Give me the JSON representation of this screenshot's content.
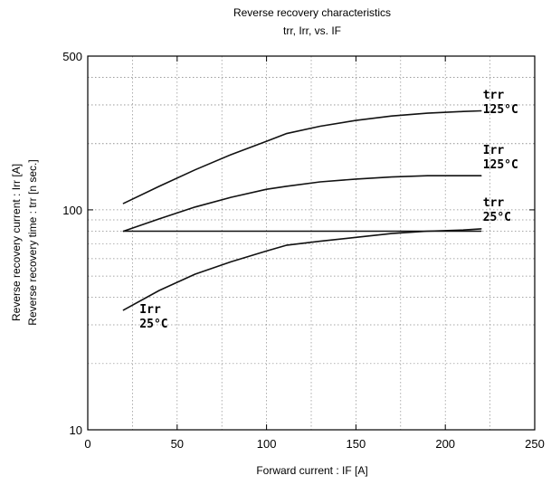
{
  "chart_data": {
    "type": "line",
    "title": "Reverse recovery characteristics",
    "subtitle": "trr, Irr, vs. IF",
    "xlabel": "Forward current : IF [A]",
    "ylabel_lines": [
      "Reverse recovery current : Irr [A]",
      "Reverse recovery time : trr [n sec.]"
    ],
    "xlim": [
      0,
      250
    ],
    "ylim": [
      10,
      500
    ],
    "yscale": "log",
    "x_ticks": [
      0,
      50,
      100,
      150,
      200,
      250
    ],
    "x_tick_labels": [
      "0",
      "50",
      "100",
      "150",
      "200",
      "250"
    ],
    "y_ticks": [
      10,
      100,
      500
    ],
    "y_tick_labels": [
      "10",
      "100",
      "500"
    ],
    "grid": true,
    "series": [
      {
        "name": "trr 125°C",
        "x": [
          20,
          40,
          60,
          80,
          100,
          111,
          130,
          150,
          170,
          190,
          210,
          220
        ],
        "y": [
          107,
          128,
          152,
          178,
          205,
          222,
          240,
          255,
          267,
          275,
          280,
          282
        ]
      },
      {
        "name": "Irr 125°C",
        "x": [
          20,
          40,
          60,
          80,
          100,
          111,
          130,
          150,
          170,
          190,
          210,
          220
        ],
        "y": [
          80,
          91,
          103,
          114,
          124,
          128,
          134,
          138,
          141,
          143,
          143,
          143
        ]
      },
      {
        "name": "trr 25°C",
        "x": [
          20,
          60,
          100,
          140,
          180,
          220
        ],
        "y": [
          80,
          80,
          80,
          80,
          80,
          80
        ]
      },
      {
        "name": "Irr 25°C",
        "x": [
          20,
          40,
          60,
          80,
          100,
          111,
          130,
          150,
          170,
          190,
          210,
          220
        ],
        "y": [
          35,
          43,
          51,
          58,
          65,
          69,
          72,
          75,
          78,
          80,
          81,
          82
        ]
      }
    ],
    "annotations": [
      {
        "lines": [
          "trr",
          "125°C"
        ],
        "x": 221,
        "y": 320
      },
      {
        "lines": [
          "Irr",
          "125°C"
        ],
        "x": 221,
        "y": 180
      },
      {
        "lines": [
          "trr",
          "25°C"
        ],
        "x": 221,
        "y": 104
      },
      {
        "lines": [
          "Irr",
          "25°C"
        ],
        "x": 29,
        "y": 34
      }
    ]
  }
}
